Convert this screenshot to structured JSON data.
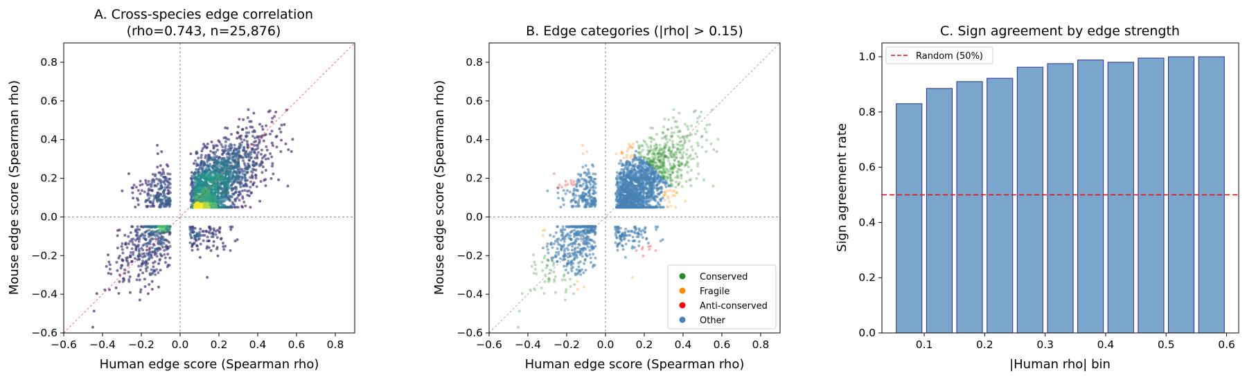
{
  "chart_data": [
    {
      "id": "A",
      "type": "scatter",
      "title_line1": "A. Cross-species edge correlation",
      "title_line2": "(rho=0.743, n=25,876)",
      "xlabel": "Human edge score (Spearman rho)",
      "ylabel": "Mouse edge score (Spearman rho)",
      "xlim": [
        -0.6,
        0.9
      ],
      "ylim": [
        -0.6,
        0.9
      ],
      "xticks": [
        "−0.6",
        "−0.4",
        "−0.2",
        "0.0",
        "0.2",
        "0.4",
        "0.6",
        "0.8"
      ],
      "yticks": [
        "−0.6",
        "−0.4",
        "−0.2",
        "0.0",
        "0.2",
        "0.4",
        "0.6",
        "0.8"
      ],
      "xtick_values": [
        -0.6,
        -0.4,
        -0.2,
        0.0,
        0.2,
        0.4,
        0.6,
        0.8
      ],
      "ytick_values": [
        -0.6,
        -0.4,
        -0.2,
        0.0,
        0.2,
        0.4,
        0.6,
        0.8
      ],
      "reference_lines": [
        "x=0",
        "y=0",
        "y=x"
      ],
      "colormap": "viridis (point density)",
      "n_points": 25876,
      "rho": 0.743
    },
    {
      "id": "B",
      "type": "scatter",
      "title": "B. Edge categories (|rho| > 0.15)",
      "xlabel": "Human edge score (Spearman rho)",
      "ylabel": "Mouse edge score (Spearman rho)",
      "xlim": [
        -0.6,
        0.9
      ],
      "ylim": [
        -0.6,
        0.9
      ],
      "xticks": [
        "−0.6",
        "−0.4",
        "−0.2",
        "0.0",
        "0.2",
        "0.4",
        "0.6",
        "0.8"
      ],
      "yticks": [
        "−0.6",
        "−0.4",
        "−0.2",
        "0.0",
        "0.2",
        "0.4",
        "0.6",
        "0.8"
      ],
      "xtick_values": [
        -0.6,
        -0.4,
        -0.2,
        0.0,
        0.2,
        0.4,
        0.6,
        0.8
      ],
      "ytick_values": [
        -0.6,
        -0.4,
        -0.2,
        0.0,
        0.2,
        0.4,
        0.6,
        0.8
      ],
      "threshold": 0.15,
      "legend_position": "lower-right",
      "legend": [
        {
          "label": "Conserved",
          "color": "#228b22"
        },
        {
          "label": "Fragile",
          "color": "#ff8c00"
        },
        {
          "label": "Anti-conserved",
          "color": "#ff0000"
        },
        {
          "label": "Other",
          "color": "#4682b4"
        }
      ]
    },
    {
      "id": "C",
      "type": "bar",
      "title": "C. Sign agreement by edge strength",
      "xlabel": "|Human rho| bin",
      "ylabel": "Sign agreement rate",
      "xlim": [
        0.03,
        0.62
      ],
      "ylim": [
        0,
        1.05
      ],
      "xticks": [
        "0.1",
        "0.2",
        "0.3",
        "0.4",
        "0.5",
        "0.6"
      ],
      "xtick_values": [
        0.1,
        0.2,
        0.3,
        0.4,
        0.5,
        0.6
      ],
      "yticks": [
        "0.0",
        "0.2",
        "0.4",
        "0.6",
        "0.8",
        "1.0"
      ],
      "ytick_values": [
        0.0,
        0.2,
        0.4,
        0.6,
        0.8,
        1.0
      ],
      "bin_centers": [
        0.075,
        0.125,
        0.175,
        0.225,
        0.275,
        0.325,
        0.375,
        0.425,
        0.475,
        0.525,
        0.575
      ],
      "values": [
        0.83,
        0.885,
        0.91,
        0.922,
        0.962,
        0.975,
        0.988,
        0.98,
        0.995,
        1.0,
        1.0
      ],
      "bar_color": "#7aa6cc",
      "bar_edge_color": "#2a2aa0",
      "reference_value": 0.5,
      "reference_label": "Random (50%)",
      "reference_color": "#ff0000",
      "legend_position": "top-left"
    }
  ]
}
